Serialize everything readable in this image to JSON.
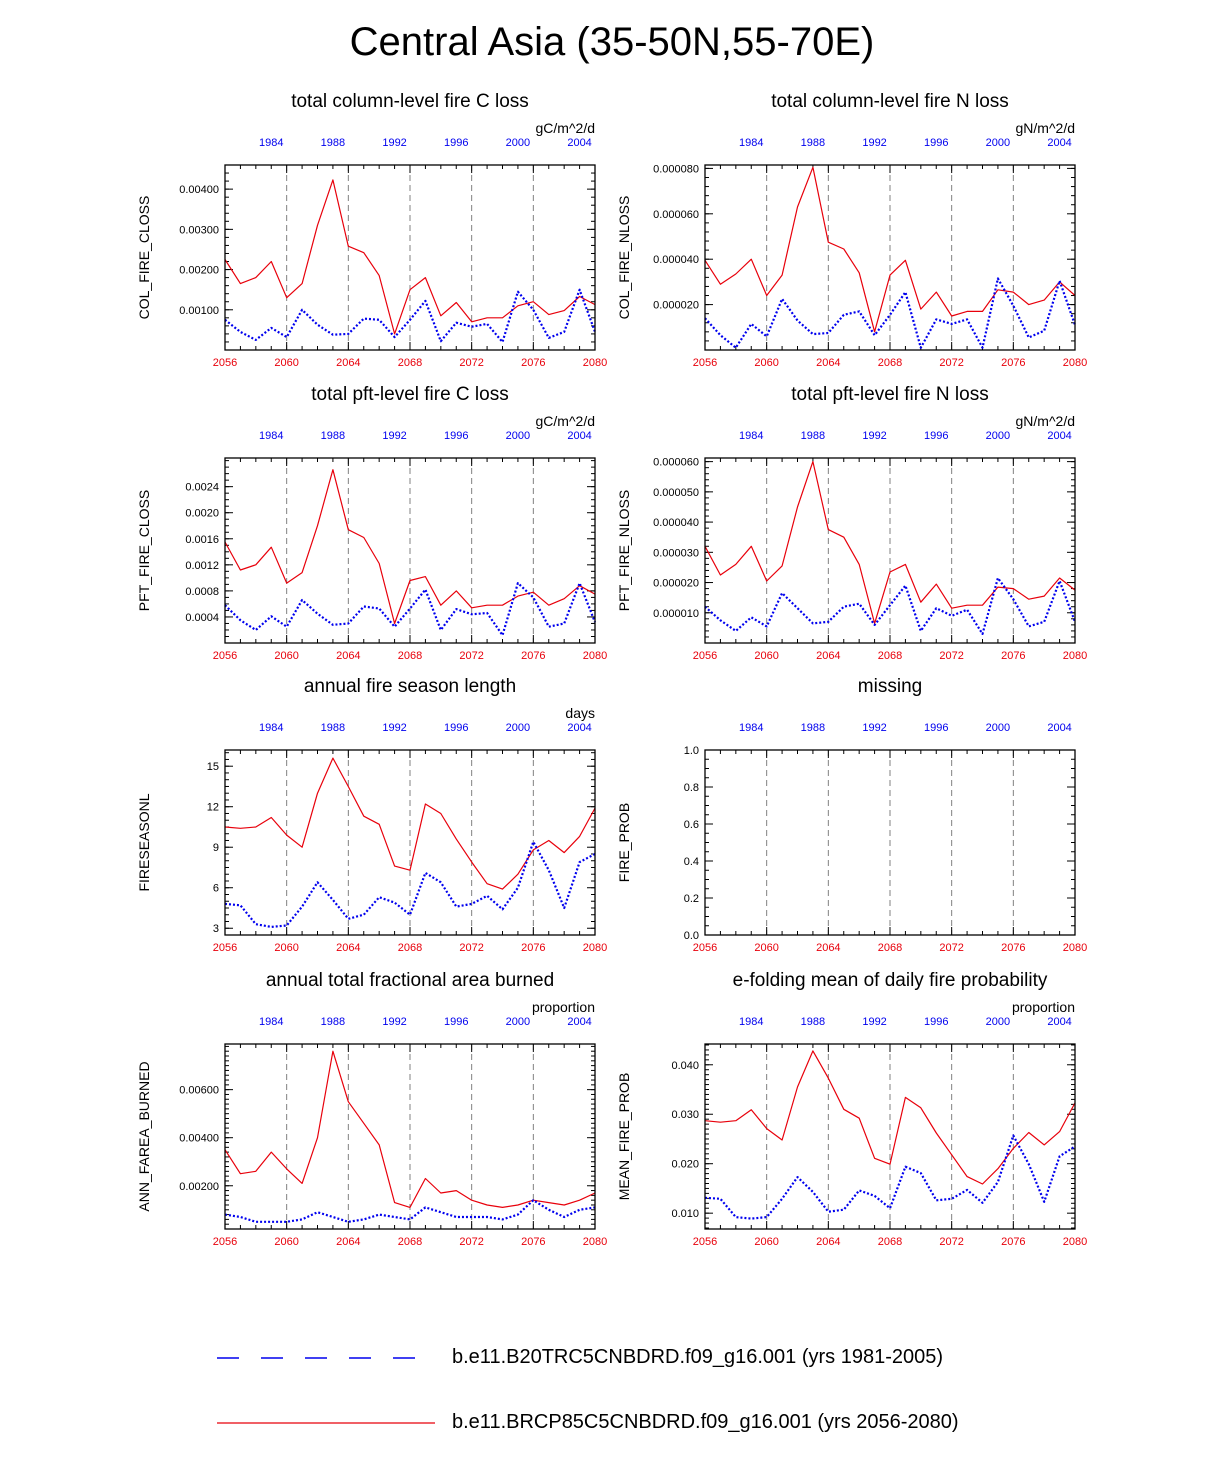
{
  "title": "Central Asia (35-50N,55-70E)",
  "colors": {
    "future": "#e8000b",
    "historical": "#0000ee",
    "axis": "#000000",
    "grid": "#808080"
  },
  "chart_data": [
    {
      "type": "line",
      "title": "total column-level fire C loss",
      "ylabel": "COL_FIRE_CLOSS",
      "units": "gC/m^2/d",
      "xlim": [
        2056,
        2080
      ],
      "ylim": [
        0.0,
        0.0046
      ],
      "yticks": [
        0.001,
        0.002,
        0.003,
        0.004
      ],
      "ytick_labels": [
        "0.00100",
        "0.00200",
        "0.00300",
        "0.00400"
      ],
      "yminor": 0.0002,
      "x_bottom_ticks": [
        "2056",
        "2060",
        "2064",
        "2068",
        "2072",
        "2076",
        "2080"
      ],
      "x_top_ticks": [
        "1984",
        "1988",
        "1992",
        "1996",
        "2000",
        "2004"
      ],
      "series": [
        {
          "name": "b.e11.BRCP85C5CNBDRD.f09_g16.001 (yrs 2056-2080)",
          "years": "2056-2080",
          "values": [
            0.00225,
            0.00165,
            0.0018,
            0.0022,
            0.0013,
            0.00165,
            0.0031,
            0.00423,
            0.00258,
            0.00242,
            0.00185,
            0.0004,
            0.0015,
            0.0018,
            0.00085,
            0.00118,
            0.0007,
            0.0008,
            0.0008,
            0.0011,
            0.0012,
            0.00088,
            0.00098,
            0.00133,
            0.00113
          ]
        },
        {
          "name": "b.e11.B20TRC5CNBDRD.f09_g16.001 (yrs 1981-2005)",
          "years": "1981-2005",
          "values": [
            0.00075,
            0.00045,
            0.00025,
            0.00055,
            0.00032,
            0.001,
            0.00063,
            0.00038,
            0.0004,
            0.00078,
            0.00075,
            0.00032,
            0.00075,
            0.00122,
            0.00022,
            0.00068,
            0.00058,
            0.00065,
            0.0002,
            0.00145,
            0.001,
            0.0003,
            0.00045,
            0.0015,
            0.00045
          ]
        }
      ]
    },
    {
      "type": "line",
      "title": "total column-level fire N loss",
      "ylabel": "COL_FIRE_NLOSS",
      "units": "gN/m^2/d",
      "xlim": [
        2056,
        2080
      ],
      "ylim": [
        0.0,
        8.15e-05
      ],
      "yticks": [
        2e-05,
        4e-05,
        6e-05,
        8e-05
      ],
      "ytick_labels": [
        "0.000020",
        "0.000040",
        "0.000060",
        "0.000080"
      ],
      "yminor": 4e-06,
      "x_bottom_ticks": [
        "2056",
        "2060",
        "2064",
        "2068",
        "2072",
        "2076",
        "2080"
      ],
      "x_top_ticks": [
        "1984",
        "1988",
        "1992",
        "1996",
        "2000",
        "2004"
      ],
      "series": [
        {
          "name": "b.e11.BRCP85C5CNBDRD.f09_g16.001 (yrs 2056-2080)",
          "years": "2056-2080",
          "values": [
            3.95e-05,
            2.9e-05,
            3.35e-05,
            4e-05,
            2.4e-05,
            3.3e-05,
            6.3e-05,
            8.05e-05,
            4.75e-05,
            4.45e-05,
            3.4e-05,
            8e-06,
            3.3e-05,
            3.95e-05,
            1.8e-05,
            2.55e-05,
            1.5e-05,
            1.7e-05,
            1.7e-05,
            2.65e-05,
            2.55e-05,
            2e-05,
            2.2e-05,
            3e-05,
            2.4e-05
          ]
        },
        {
          "name": "b.e11.B20TRC5CNBDRD.f09_g16.001 (yrs 1981-2005)",
          "years": "1981-2005",
          "values": [
            1.4e-05,
            6.5e-06,
            1e-06,
            1.15e-05,
            6e-06,
            2.25e-05,
            1.3e-05,
            7e-06,
            7.5e-06,
            1.55e-05,
            1.7e-05,
            6.5e-06,
            1.55e-05,
            2.55e-05,
            1e-06,
            1.35e-05,
            1.15e-05,
            1.35e-05,
            1e-06,
            3.15e-05,
            1.95e-05,
            5.5e-06,
            8.5e-06,
            3.05e-05,
            1.1e-05
          ]
        }
      ]
    },
    {
      "type": "line",
      "title": "total pft-level fire C loss",
      "ylabel": "PFT_FIRE_CLOSS",
      "units": "gC/m^2/d",
      "xlim": [
        2056,
        2080
      ],
      "ylim": [
        0.0,
        0.00284
      ],
      "yticks": [
        0.0004,
        0.0008,
        0.0012,
        0.0016,
        0.002,
        0.0024
      ],
      "ytick_labels": [
        "0.0004",
        "0.0008",
        "0.0012",
        "0.0016",
        "0.0020",
        "0.0024"
      ],
      "yminor": 0.0001,
      "x_bottom_ticks": [
        "2056",
        "2060",
        "2064",
        "2068",
        "2072",
        "2076",
        "2080"
      ],
      "x_top_ticks": [
        "1984",
        "1988",
        "1992",
        "1996",
        "2000",
        "2004"
      ],
      "series": [
        {
          "name": "b.e11.BRCP85C5CNBDRD.f09_g16.001 (yrs 2056-2080)",
          "years": "2056-2080",
          "values": [
            0.00155,
            0.00112,
            0.0012,
            0.00147,
            0.00092,
            0.00108,
            0.0018,
            0.00266,
            0.00174,
            0.00162,
            0.00122,
            0.0003,
            0.00096,
            0.00102,
            0.00058,
            0.0008,
            0.00054,
            0.00058,
            0.00058,
            0.00072,
            0.00078,
            0.00058,
            0.00068,
            0.00088,
            0.00075
          ]
        },
        {
          "name": "b.e11.B20TRC5CNBDRD.f09_g16.001 (yrs 1981-2005)",
          "years": "1981-2005",
          "values": [
            0.00058,
            0.00035,
            0.0002,
            0.00041,
            0.00025,
            0.00066,
            0.00045,
            0.00028,
            0.0003,
            0.00056,
            0.00053,
            0.00025,
            0.00053,
            0.00082,
            0.0002,
            0.00052,
            0.00044,
            0.00046,
            0.00012,
            0.00092,
            0.0007,
            0.00025,
            0.0003,
            0.00092,
            0.00032
          ]
        }
      ]
    },
    {
      "type": "line",
      "title": "total pft-level fire N loss",
      "ylabel": "PFT_FIRE_NLOSS",
      "units": "gN/m^2/d",
      "xlim": [
        2056,
        2080
      ],
      "ylim": [
        0.0,
        6.12e-05
      ],
      "yticks": [
        1e-05,
        2e-05,
        3e-05,
        4e-05,
        5e-05,
        6e-05
      ],
      "ytick_labels": [
        "0.000010",
        "0.000020",
        "0.000030",
        "0.000040",
        "0.000050",
        "0.000060"
      ],
      "yminor": 2e-06,
      "x_bottom_ticks": [
        "2056",
        "2060",
        "2064",
        "2068",
        "2072",
        "2076",
        "2080"
      ],
      "x_top_ticks": [
        "1984",
        "1988",
        "1992",
        "1996",
        "2000",
        "2004"
      ],
      "series": [
        {
          "name": "b.e11.BRCP85C5CNBDRD.f09_g16.001 (yrs 2056-2080)",
          "years": "2056-2080",
          "values": [
            3.2e-05,
            2.25e-05,
            2.6e-05,
            3.2e-05,
            2.05e-05,
            2.55e-05,
            4.5e-05,
            6e-05,
            3.75e-05,
            3.5e-05,
            2.6e-05,
            6.5e-06,
            2.35e-05,
            2.6e-05,
            1.35e-05,
            1.95e-05,
            1.15e-05,
            1.25e-05,
            1.25e-05,
            1.85e-05,
            1.8e-05,
            1.45e-05,
            1.55e-05,
            2.15e-05,
            1.75e-05
          ]
        },
        {
          "name": "b.e11.B20TRC5CNBDRD.f09_g16.001 (yrs 1981-2005)",
          "years": "1981-2005",
          "values": [
            1.2e-05,
            7.5e-06,
            4e-06,
            8.5e-06,
            5.5e-06,
            1.65e-05,
            1.15e-05,
            6.5e-06,
            7e-06,
            1.2e-05,
            1.3e-05,
            6e-06,
            1.25e-05,
            1.9e-05,
            4e-06,
            1.15e-05,
            9e-06,
            1.1e-05,
            3e-06,
            2.15e-05,
            1.45e-05,
            5.5e-06,
            7e-06,
            2.05e-05,
            7e-06
          ]
        }
      ]
    },
    {
      "type": "line",
      "title": "annual fire season length",
      "ylabel": "FIRESEASONL",
      "units": "days",
      "xlim": [
        2056,
        2080
      ],
      "ylim": [
        2.5,
        16.2
      ],
      "yticks": [
        3,
        6,
        9,
        12,
        15
      ],
      "ytick_labels": [
        "3",
        "6",
        "9",
        "12",
        "15"
      ],
      "yminor": 0.5,
      "x_bottom_ticks": [
        "2056",
        "2060",
        "2064",
        "2068",
        "2072",
        "2076",
        "2080"
      ],
      "x_top_ticks": [
        "1984",
        "1988",
        "1992",
        "1996",
        "2000",
        "2004"
      ],
      "series": [
        {
          "name": "b.e11.BRCP85C5CNBDRD.f09_g16.001 (yrs 2056-2080)",
          "years": "2056-2080",
          "values": [
            10.5,
            10.4,
            10.5,
            11.2,
            9.9,
            9.0,
            13.0,
            15.6,
            13.5,
            11.3,
            10.7,
            7.6,
            7.3,
            12.2,
            11.5,
            9.6,
            7.9,
            6.3,
            5.9,
            7.0,
            8.8,
            9.5,
            8.6,
            9.8,
            11.9
          ]
        },
        {
          "name": "b.e11.B20TRC5CNBDRD.f09_g16.001 (yrs 1981-2005)",
          "years": "1981-2005",
          "values": [
            4.8,
            4.7,
            3.3,
            3.1,
            3.2,
            4.6,
            6.4,
            5.1,
            3.7,
            4.0,
            5.3,
            4.9,
            4.0,
            7.1,
            6.4,
            4.6,
            4.8,
            5.4,
            4.4,
            6.0,
            9.4,
            7.3,
            4.5,
            7.9,
            8.5
          ]
        }
      ]
    },
    {
      "type": "line",
      "title": "missing",
      "ylabel": "FIRE_PROB",
      "units": "",
      "xlim": [
        2056,
        2080
      ],
      "ylim": [
        0.0,
        1.0
      ],
      "yticks": [
        0.0,
        0.2,
        0.4,
        0.6,
        0.8,
        1.0
      ],
      "ytick_labels": [
        "0.0",
        "0.2",
        "0.4",
        "0.6",
        "0.8",
        "1.0"
      ],
      "yminor": 0.05,
      "x_bottom_ticks": [
        "2056",
        "2060",
        "2064",
        "2068",
        "2072",
        "2076",
        "2080"
      ],
      "x_top_ticks": [
        "1984",
        "1988",
        "1992",
        "1996",
        "2000",
        "2004"
      ],
      "series": []
    },
    {
      "type": "line",
      "title": "annual total fractional area burned",
      "ylabel": "ANN_FAREA_BURNED",
      "units": "proportion",
      "xlim": [
        2056,
        2080
      ],
      "ylim": [
        0.0002,
        0.0079
      ],
      "yticks": [
        0.002,
        0.004,
        0.006
      ],
      "ytick_labels": [
        "0.00200",
        "0.00400",
        "0.00600"
      ],
      "yminor": 0.0002,
      "x_bottom_ticks": [
        "2056",
        "2060",
        "2064",
        "2068",
        "2072",
        "2076",
        "2080"
      ],
      "x_top_ticks": [
        "1984",
        "1988",
        "1992",
        "1996",
        "2000",
        "2004"
      ],
      "series": [
        {
          "name": "b.e11.BRCP85C5CNBDRD.f09_g16.001 (yrs 2056-2080)",
          "years": "2056-2080",
          "values": [
            0.0035,
            0.0025,
            0.0026,
            0.0034,
            0.0027,
            0.0021,
            0.004,
            0.0076,
            0.0055,
            0.0046,
            0.0037,
            0.0013,
            0.0011,
            0.0023,
            0.0017,
            0.0018,
            0.0014,
            0.0012,
            0.0011,
            0.0012,
            0.0014,
            0.0013,
            0.0012,
            0.0014,
            0.0017
          ]
        },
        {
          "name": "b.e11.B20TRC5CNBDRD.f09_g16.001 (yrs 1981-2005)",
          "years": "1981-2005",
          "values": [
            0.0008,
            0.0007,
            0.0005,
            0.0005,
            0.0005,
            0.0006,
            0.0009,
            0.0007,
            0.0005,
            0.0006,
            0.0008,
            0.0007,
            0.0006,
            0.0011,
            0.0009,
            0.0007,
            0.0007,
            0.0007,
            0.0006,
            0.0008,
            0.0014,
            0.001,
            0.0007,
            0.001,
            0.0011
          ]
        }
      ]
    },
    {
      "type": "line",
      "title": "e-folding mean of daily fire probability",
      "ylabel": "MEAN_FIRE_PROB",
      "units": "proportion",
      "xlim": [
        2056,
        2080
      ],
      "ylim": [
        0.0068,
        0.0442
      ],
      "yticks": [
        0.01,
        0.02,
        0.03,
        0.04
      ],
      "ytick_labels": [
        "0.010",
        "0.020",
        "0.030",
        "0.040"
      ],
      "yminor": 0.001,
      "x_bottom_ticks": [
        "2056",
        "2060",
        "2064",
        "2068",
        "2072",
        "2076",
        "2080"
      ],
      "x_top_ticks": [
        "1984",
        "1988",
        "1992",
        "1996",
        "2000",
        "2004"
      ],
      "series": [
        {
          "name": "b.e11.BRCP85C5CNBDRD.f09_g16.001 (yrs 2056-2080)",
          "years": "2056-2080",
          "values": [
            0.0287,
            0.0284,
            0.0287,
            0.0309,
            0.0271,
            0.0248,
            0.0355,
            0.0428,
            0.0373,
            0.031,
            0.0292,
            0.0211,
            0.0199,
            0.0334,
            0.0313,
            0.0262,
            0.0218,
            0.0174,
            0.0159,
            0.019,
            0.0231,
            0.0263,
            0.0238,
            0.0265,
            0.0323
          ]
        },
        {
          "name": "b.e11.B20TRC5CNBDRD.f09_g16.001 (yrs 1981-2005)",
          "years": "1981-2005",
          "values": [
            0.0131,
            0.0129,
            0.0092,
            0.0089,
            0.0092,
            0.0129,
            0.0173,
            0.0143,
            0.0103,
            0.0107,
            0.0146,
            0.0135,
            0.011,
            0.0194,
            0.0181,
            0.0126,
            0.0129,
            0.0147,
            0.0121,
            0.0163,
            0.0257,
            0.0199,
            0.0123,
            0.0215,
            0.0235
          ]
        }
      ]
    }
  ],
  "legend": [
    {
      "label": "b.e11.B20TRC5CNBDRD.f09_g16.001 (yrs 1981-2005)",
      "style": "dashed",
      "color": "#0000ee"
    },
    {
      "label": "b.e11.BRCP85C5CNBDRD.f09_g16.001 (yrs 2056-2080)",
      "style": "solid",
      "color": "#e8000b"
    }
  ]
}
